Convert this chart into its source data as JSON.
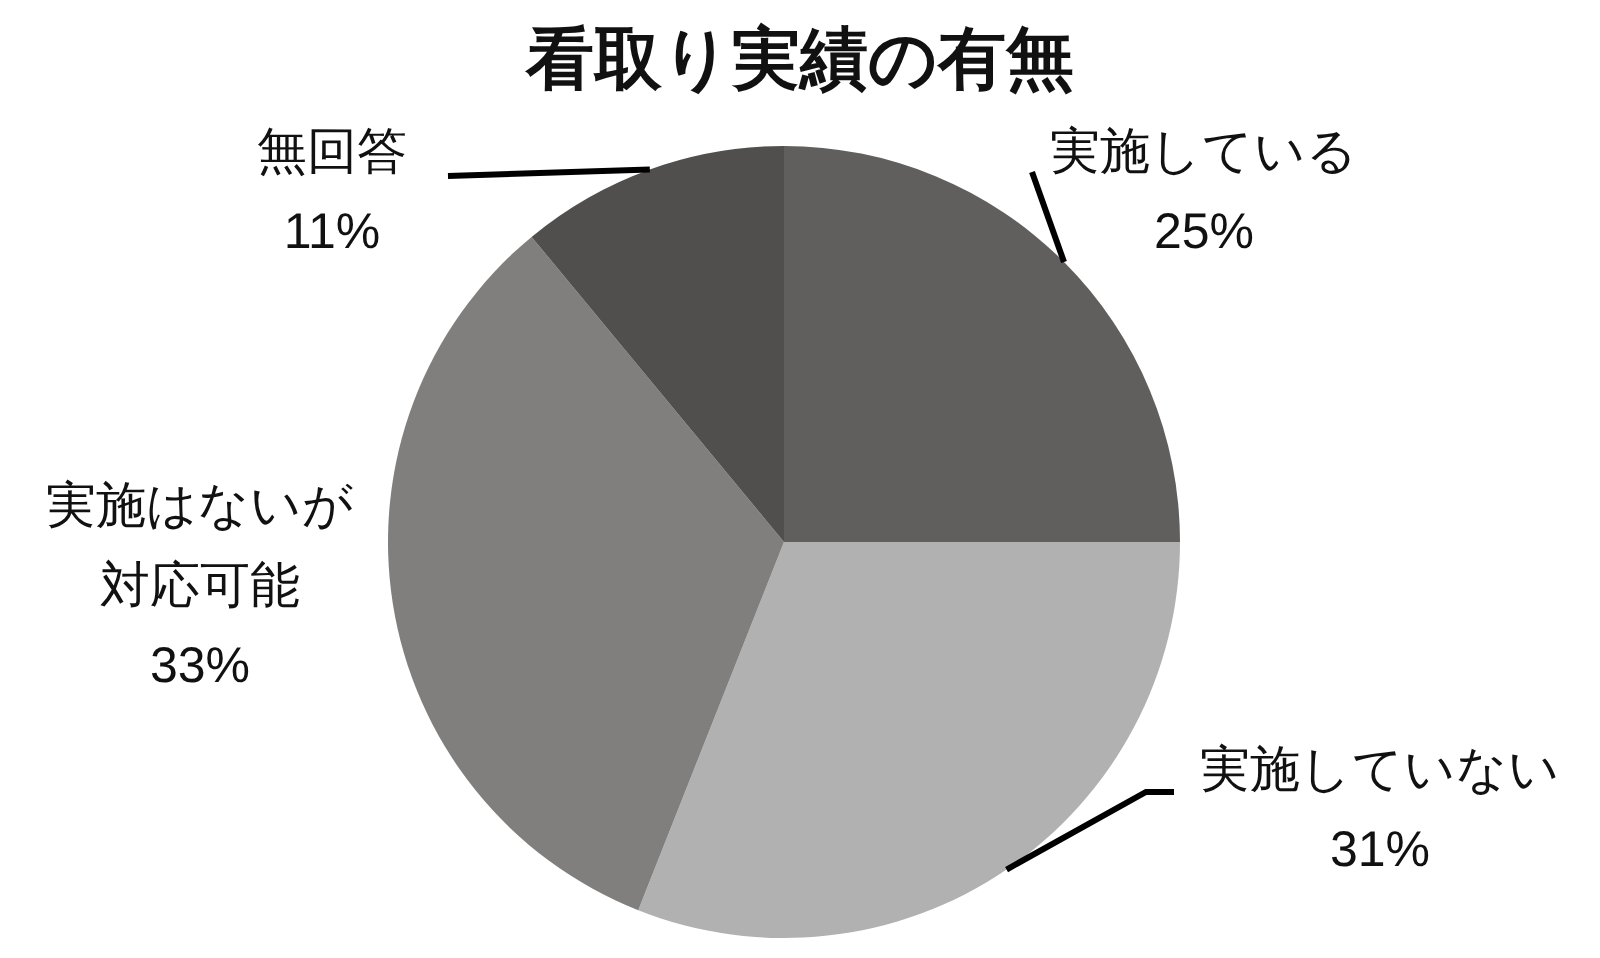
{
  "chart_data": {
    "type": "pie",
    "title": "看取り実績の有無",
    "categories": [
      "実施している",
      "実施していない",
      "実施はないが対応可能",
      "無回答"
    ],
    "values": [
      25,
      31,
      33,
      11
    ],
    "colors": [
      "#605f5d",
      "#b2b1b1",
      "#807f7d",
      "#504f4d"
    ],
    "value_labels": [
      "25%",
      "31%",
      "33%",
      "11%"
    ]
  }
}
